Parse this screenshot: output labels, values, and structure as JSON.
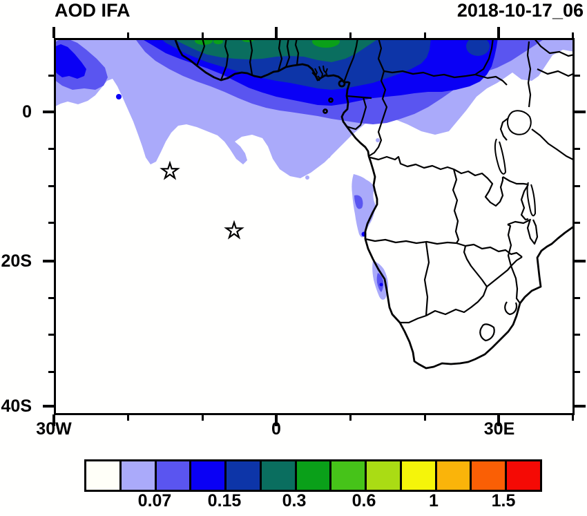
{
  "title": "AOD IFA",
  "timestamp": "2018-10-17_06",
  "axes": {
    "y_ticks": [
      {
        "label": "0"
      },
      {
        "label": "20S"
      },
      {
        "label": "40S"
      }
    ],
    "x_ticks": [
      {
        "label": "30W"
      },
      {
        "label": "0"
      },
      {
        "label": "30E"
      }
    ]
  },
  "colorbar": {
    "colors": [
      "#FFFFF8",
      "#AAAAFA",
      "#5A55F0",
      "#0A00F5",
      "#0D35A8",
      "#0A6E5F",
      "#0AA019",
      "#46C319",
      "#AADC14",
      "#F5F50A",
      "#FAB40A",
      "#FA5F05",
      "#F50A05"
    ],
    "tick_labels": [
      "0.07",
      "0.15",
      "0.3",
      "0.6",
      "1",
      "1.5"
    ]
  },
  "chart_data": {
    "type": "heatmap",
    "subtype": "filled-contour-map",
    "title": "AOD IFA",
    "timestamp_label": "2018-10-17_06",
    "variable": "Aerosol Optical Depth (AOD)",
    "region": "Africa and the tropical / South Atlantic",
    "lon_range_deg": [
      -30,
      40
    ],
    "lat_range_deg": [
      -41,
      10
    ],
    "x_tick_labels": [
      "30W",
      "0",
      "30E"
    ],
    "y_tick_labels": [
      "0",
      "20S",
      "40S"
    ],
    "grid": false,
    "legend_position": "bottom horizontal colorbar",
    "contour_levels_labeled": [
      0.07,
      0.15,
      0.3,
      0.6,
      1,
      1.5
    ],
    "colorbar_bins": 13,
    "colorbar_colors": [
      "#FFFFF8",
      "#AAAAFA",
      "#5A55F0",
      "#0A00F5",
      "#0D35A8",
      "#0A6E5F",
      "#0AA019",
      "#46C319",
      "#AADC14",
      "#F5F50A",
      "#FAB40A",
      "#FA5F05",
      "#F50A05"
    ],
    "features": [
      {
        "name": "gulf-of-guinea-plume",
        "description": "Broad AOD band along 10N-5S across West/Central Africa and eastern tropical Atlantic; teal/green core (~0.3-0.6) hugging the Guinea coast with small green maxima, grading through dark blue, bright blue, violet and pale lavender southward"
      },
      {
        "name": "central-african-maximum",
        "description": "Bright blue (~0.15-0.3) lobe over Cameroon/CAR/South Sudan with dark-blue core near 10N"
      },
      {
        "name": "west-atlantic-blob",
        "description": "Blue/violet maximum at the map's NW corner near 30W, 0-5N"
      },
      {
        "name": "angola-coast-patch",
        "description": "Lavender patch (~0.05-0.15) along the Angola coast near 8-13S with small violet/blue core"
      },
      {
        "name": "namibia-coast-patch",
        "description": "Lavender patch (~0.05-0.15) along the northern Namibia coast near 20-24S with small violet core"
      }
    ],
    "markers": [
      {
        "symbol": "open-star",
        "lon_deg": -14.3,
        "lat_deg": -8.1
      },
      {
        "symbol": "open-star",
        "lon_deg": -5.7,
        "lat_deg": -16.2
      }
    ]
  }
}
